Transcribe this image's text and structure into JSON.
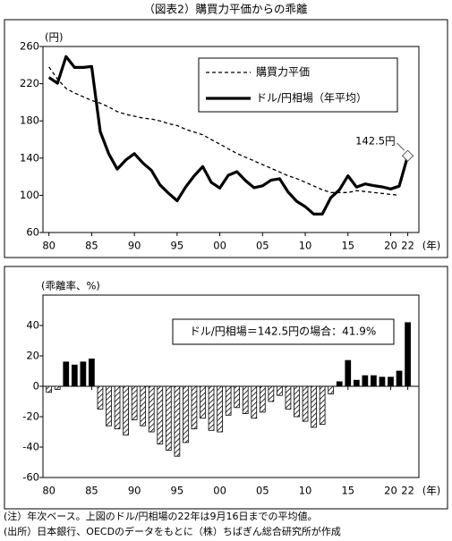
{
  "title": "（図表2）購買力平価からの乖離",
  "chart_data": [
    {
      "type": "line",
      "y_label": "(円)",
      "x_label": "(年)",
      "x": [
        1980,
        1981,
        1982,
        1983,
        1984,
        1985,
        1986,
        1987,
        1988,
        1989,
        1990,
        1991,
        1992,
        1993,
        1994,
        1995,
        1996,
        1997,
        1998,
        1999,
        2000,
        2001,
        2002,
        2003,
        2004,
        2005,
        2006,
        2007,
        2008,
        2009,
        2010,
        2011,
        2012,
        2013,
        2014,
        2015,
        2016,
        2017,
        2018,
        2019,
        2020,
        2021,
        2022
      ],
      "series": [
        {
          "name": "購買力平価",
          "color": "#000000",
          "style": "dashed",
          "values": [
            238,
            225,
            215,
            210,
            206,
            202,
            199,
            195,
            190,
            187,
            185,
            183,
            182,
            180,
            177,
            175,
            171,
            168,
            165,
            160,
            155,
            150,
            145,
            141,
            137,
            133,
            129,
            125,
            121,
            118,
            114,
            110,
            106,
            103,
            103,
            103,
            105,
            104,
            103,
            102,
            101,
            100,
            null
          ]
        },
        {
          "name": "ドル/円相場（年平均）",
          "color": "#000000",
          "style": "solid",
          "values": [
            226.7,
            220.5,
            249.1,
            237.5,
            237.5,
            238.5,
            168.5,
            144.6,
            128.2,
            138.0,
            144.8,
            134.7,
            126.7,
            111.2,
            102.2,
            94.1,
            108.8,
            121.0,
            130.9,
            113.9,
            107.8,
            121.5,
            125.4,
            115.9,
            108.2,
            110.2,
            116.3,
            117.8,
            103.4,
            93.6,
            87.8,
            79.8,
            79.8,
            97.6,
            105.9,
            121.0,
            108.8,
            112.2,
            110.4,
            109.0,
            106.8,
            109.8,
            142.5
          ]
        }
      ],
      "annotation": "142.5円",
      "xlim": [
        1979.3,
        2023.3
      ],
      "ylim": [
        60,
        260
      ],
      "xticks": [
        {
          "value": 1980,
          "label": "80"
        },
        {
          "value": 1985,
          "label": "85"
        },
        {
          "value": 1990,
          "label": "90"
        },
        {
          "value": 1995,
          "label": "95"
        },
        {
          "value": 2000,
          "label": "00"
        },
        {
          "value": 2005,
          "label": "05"
        },
        {
          "value": 2010,
          "label": "10"
        },
        {
          "value": 2015,
          "label": "15"
        },
        {
          "value": 2020,
          "label": "20"
        },
        {
          "value": 2022,
          "label": "22"
        }
      ],
      "yticks": [
        60,
        100,
        140,
        180,
        220,
        260
      ],
      "legend": "upper right"
    },
    {
      "type": "bar",
      "y_label": "(乖離率、%)",
      "x_label": "(年)",
      "x": [
        1980,
        1981,
        1982,
        1983,
        1984,
        1985,
        1986,
        1987,
        1988,
        1989,
        1990,
        1991,
        1992,
        1993,
        1994,
        1995,
        1996,
        1997,
        1998,
        1999,
        2000,
        2001,
        2002,
        2003,
        2004,
        2005,
        2006,
        2007,
        2008,
        2009,
        2010,
        2011,
        2012,
        2013,
        2014,
        2015,
        2016,
        2017,
        2018,
        2019,
        2020,
        2021,
        2022
      ],
      "values": [
        -4,
        -2,
        16,
        14,
        16,
        18,
        -15,
        -26,
        -28,
        -32,
        -22,
        -26,
        -30,
        -38,
        -42,
        -46,
        -37,
        -28,
        -21,
        -29,
        -30,
        -19,
        -14,
        -18,
        -21,
        -17,
        -10,
        -6,
        -15,
        -20,
        -23,
        -27,
        -25,
        -5,
        3,
        17,
        4,
        7,
        7,
        6,
        6,
        10,
        41.9
      ],
      "color": "#000000",
      "negative_fill": "hatch",
      "annotation": "ドル/円相場＝142.5円の場合：41.9%",
      "xlim": [
        1979.3,
        2023.3
      ],
      "ylim": [
        -60,
        60
      ],
      "xticks": [
        {
          "value": 1980,
          "label": "80"
        },
        {
          "value": 1985,
          "label": "85"
        },
        {
          "value": 1990,
          "label": "90"
        },
        {
          "value": 1995,
          "label": "95"
        },
        {
          "value": 2000,
          "label": "00"
        },
        {
          "value": 2005,
          "label": "05"
        },
        {
          "value": 2010,
          "label": "10"
        },
        {
          "value": 2015,
          "label": "15"
        },
        {
          "value": 2020,
          "label": "20"
        },
        {
          "value": 2022,
          "label": "22"
        }
      ],
      "yticks": [
        -60,
        -40,
        -20,
        0,
        20,
        40
      ]
    }
  ],
  "notes": [
    "(注）年次ベース。上図のドル/円相場の22年は9月16日までの平均値。",
    "(出所）日本銀行、OECDのデータをもとに（株）ちばぎん総合研究所が作成"
  ]
}
